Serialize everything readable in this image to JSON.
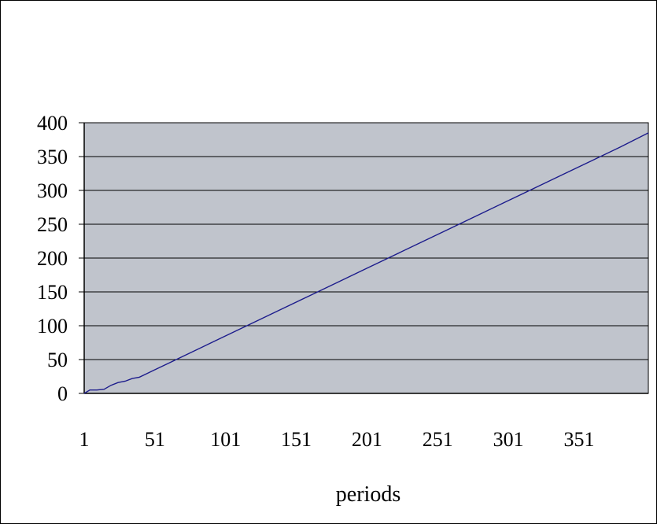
{
  "chart_data": {
    "type": "line",
    "xlabel": "periods",
    "ylabel": "",
    "ylim": [
      0,
      400
    ],
    "xlim": [
      1,
      400
    ],
    "y_ticks": [
      "0",
      "50",
      "100",
      "150",
      "200",
      "250",
      "300",
      "350",
      "400"
    ],
    "x_ticks": [
      "1",
      "51",
      "101",
      "151",
      "201",
      "251",
      "301",
      "351"
    ],
    "grid": true,
    "legend": "none",
    "plot_background": "#c0c4cc",
    "line_color": "#1c1c8c",
    "series": [
      {
        "x": [
          1,
          5,
          10,
          15,
          20,
          25,
          30,
          35,
          40,
          45,
          50,
          60,
          70,
          80,
          90,
          100,
          120,
          140,
          160,
          180,
          200,
          220,
          240,
          260,
          280,
          300,
          320,
          340,
          360,
          380,
          400
        ],
        "values": [
          0,
          5,
          5,
          6,
          12,
          16,
          18,
          22,
          24,
          29,
          34,
          44,
          54,
          64,
          74,
          84,
          104,
          124,
          144,
          164,
          184,
          204,
          224,
          244,
          264,
          284,
          304,
          324,
          344,
          364,
          385
        ]
      }
    ]
  }
}
